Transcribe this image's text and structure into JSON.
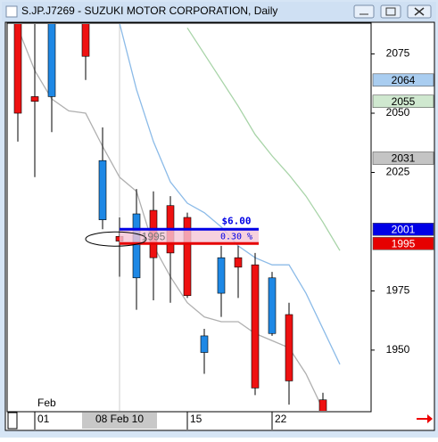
{
  "chart_data": {
    "type": "candlestick",
    "title": "S.JP.J7269 - SUZUKI MOTOR CORPORATION, Daily",
    "month_label": "Feb",
    "categories": [
      null,
      "01",
      null,
      null,
      null,
      null,
      "08 Feb 10",
      null,
      null,
      null,
      "15",
      null,
      null,
      null,
      null,
      "22",
      null,
      null,
      null,
      null
    ],
    "open": [
      2090,
      2057,
      2057,
      null,
      2090,
      2005,
      1998,
      1980.5,
      2009,
      2011,
      2006,
      1949,
      1974,
      1989,
      1986,
      1957,
      1965,
      null,
      1929,
      null
    ],
    "high": [
      2092,
      2090,
      2095,
      null,
      2095,
      2044,
      2006,
      2018,
      2017,
      2015,
      2008,
      1959,
      1994,
      1994,
      1991,
      1983,
      1970,
      null,
      1932,
      null
    ],
    "low": [
      2038,
      2023,
      2042,
      null,
      2064,
      2001,
      1981,
      1967,
      1971,
      1970,
      1972,
      1940,
      1964,
      1972,
      1931,
      1956,
      1927,
      null,
      1920,
      null
    ],
    "close": [
      2050,
      2055,
      2090,
      null,
      2074,
      2030,
      1996,
      2007.5,
      1989,
      1991,
      1973,
      1956,
      1989,
      1985,
      1934,
      1980.5,
      1937,
      null,
      1924,
      null
    ],
    "up_color": "#1e88e5",
    "down_color": "#ee1111",
    "series": [
      {
        "color": "#b0b0b0",
        "values": [
          2086,
          2068,
          2056,
          2051,
          2050,
          2036,
          2023,
          2017,
          1994,
          1981,
          1970,
          1964,
          1962,
          1962,
          1957,
          1954,
          1951,
          1940,
          1925,
          null
        ]
      },
      {
        "color": "#8cbbe8",
        "values": [
          null,
          null,
          null,
          null,
          null,
          null,
          2088,
          2060,
          2038,
          2021,
          2012,
          2008,
          2002,
          1994,
          1989,
          1986,
          1986,
          1974,
          1959,
          1944
        ]
      },
      {
        "color": "#a8d4a8",
        "values": [
          null,
          null,
          null,
          null,
          null,
          null,
          null,
          null,
          null,
          null,
          2086,
          2075,
          2064,
          2053,
          2041,
          2032,
          2024,
          2015,
          2004,
          1992
        ]
      }
    ],
    "ylim": [
      1924,
      2088
    ],
    "yticks": [
      1950,
      1975,
      2025,
      2050,
      2075
    ],
    "price_markers": [
      {
        "value": 2064,
        "color": "#a9cdf0",
        "text_color": "#000000"
      },
      {
        "value": 2055,
        "color": "#cfe8cf",
        "text_color": "#000000"
      },
      {
        "value": 2031,
        "color": "#c4c4c4",
        "text_color": "#000000"
      },
      {
        "value": 2001,
        "color": "#0000e6",
        "text_color": "#ffffff"
      },
      {
        "value": 1995,
        "color": "#e60000",
        "text_color": "#ffffff"
      }
    ],
    "measure": {
      "high": 2001,
      "low": 1995,
      "change_label": "$6.00",
      "percent_label": "0.30 %"
    }
  }
}
